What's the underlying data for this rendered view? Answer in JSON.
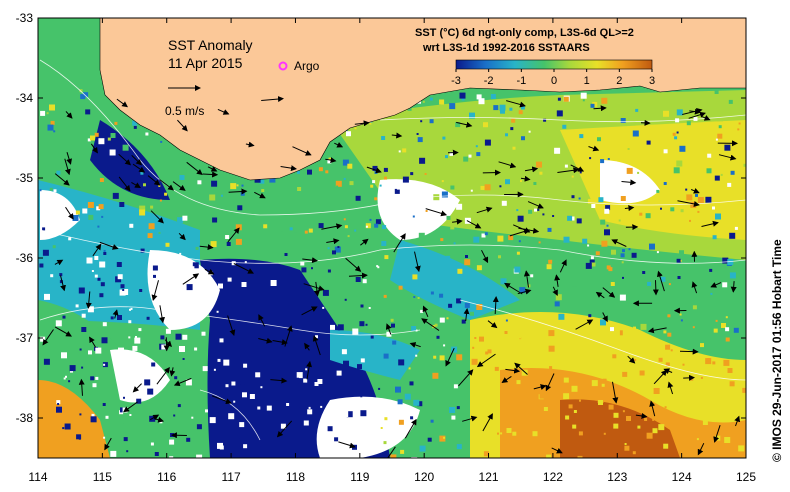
{
  "map": {
    "title": "SST Anomaly",
    "date": "11 Apr 2015",
    "argo_label": "Argo",
    "scale_label": "0.5 m/s",
    "legend_line1": "SST (°C) 6d ngt-only comp, L3S-6d QL>=2",
    "legend_line2": "wrt L3S-1d 1992-2016 SSTAARS",
    "side_credit": "© IMOS 29-Jun-2017 01:56 Hobart Time",
    "lon_ticks": [
      "114",
      "115",
      "116",
      "117",
      "118",
      "119",
      "120",
      "121",
      "122",
      "123",
      "124",
      "125"
    ],
    "lat_ticks": [
      "-33",
      "-34",
      "-35",
      "-36",
      "-37",
      "-38"
    ],
    "colorbar_ticks": [
      "-3",
      "-2",
      "-1",
      "0",
      "1",
      "2",
      "3"
    ],
    "colors": {
      "land": "#fbc898",
      "missing": "#ffffff",
      "very_cold": "#0a1a8c",
      "cold": "#1a6fc8",
      "cool": "#28b4c8",
      "neutral": "#46c36a",
      "mild": "#a8d83c",
      "warm": "#e8e028",
      "hot": "#f0a020",
      "very_hot": "#c05a10",
      "argo": "#ff33ff"
    }
  },
  "chart_data": {
    "type": "heatmap",
    "variable": "SST (°C) 6d ngt-only comp, L3S-6d QL>=2",
    "xlim": [
      114,
      125
    ],
    "ylim": [
      -38.5,
      -33
    ],
    "colorbar_range": [
      -3,
      3
    ]
  }
}
